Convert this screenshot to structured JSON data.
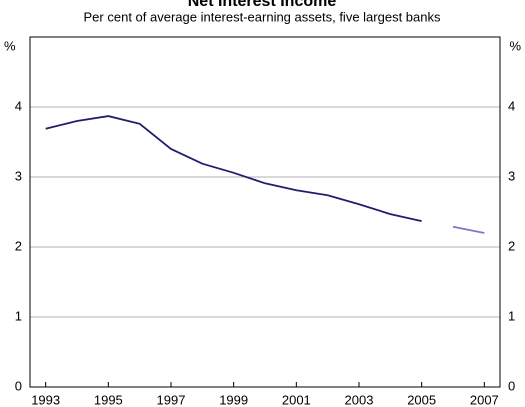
{
  "chart_data": {
    "type": "line",
    "title": "Net Interest Income",
    "subtitle": "Per cent of average interest-earning assets, five largest banks",
    "y_unit": "%",
    "series": [
      {
        "color": "#1f1f6e",
        "x": [
          1993,
          1994,
          1995,
          1996,
          1997,
          1998,
          1999,
          2000,
          2001,
          2002,
          2003,
          2004,
          2005
        ],
        "values": [
          3.69,
          3.8,
          3.87,
          3.76,
          3.4,
          3.19,
          3.06,
          2.91,
          2.81,
          2.74,
          2.61,
          2.47,
          2.37
        ]
      },
      {
        "color": "#7b78c8",
        "x": [
          2006,
          2007
        ],
        "values": [
          2.29,
          2.2
        ]
      }
    ],
    "xlim": [
      1992.5,
      2007.5
    ],
    "xticks": [
      1993,
      1995,
      1997,
      1999,
      2001,
      2003,
      2005,
      2007
    ],
    "ylim": [
      0,
      5
    ],
    "yticks": [
      0,
      1,
      2,
      3,
      4
    ],
    "grid": true
  }
}
